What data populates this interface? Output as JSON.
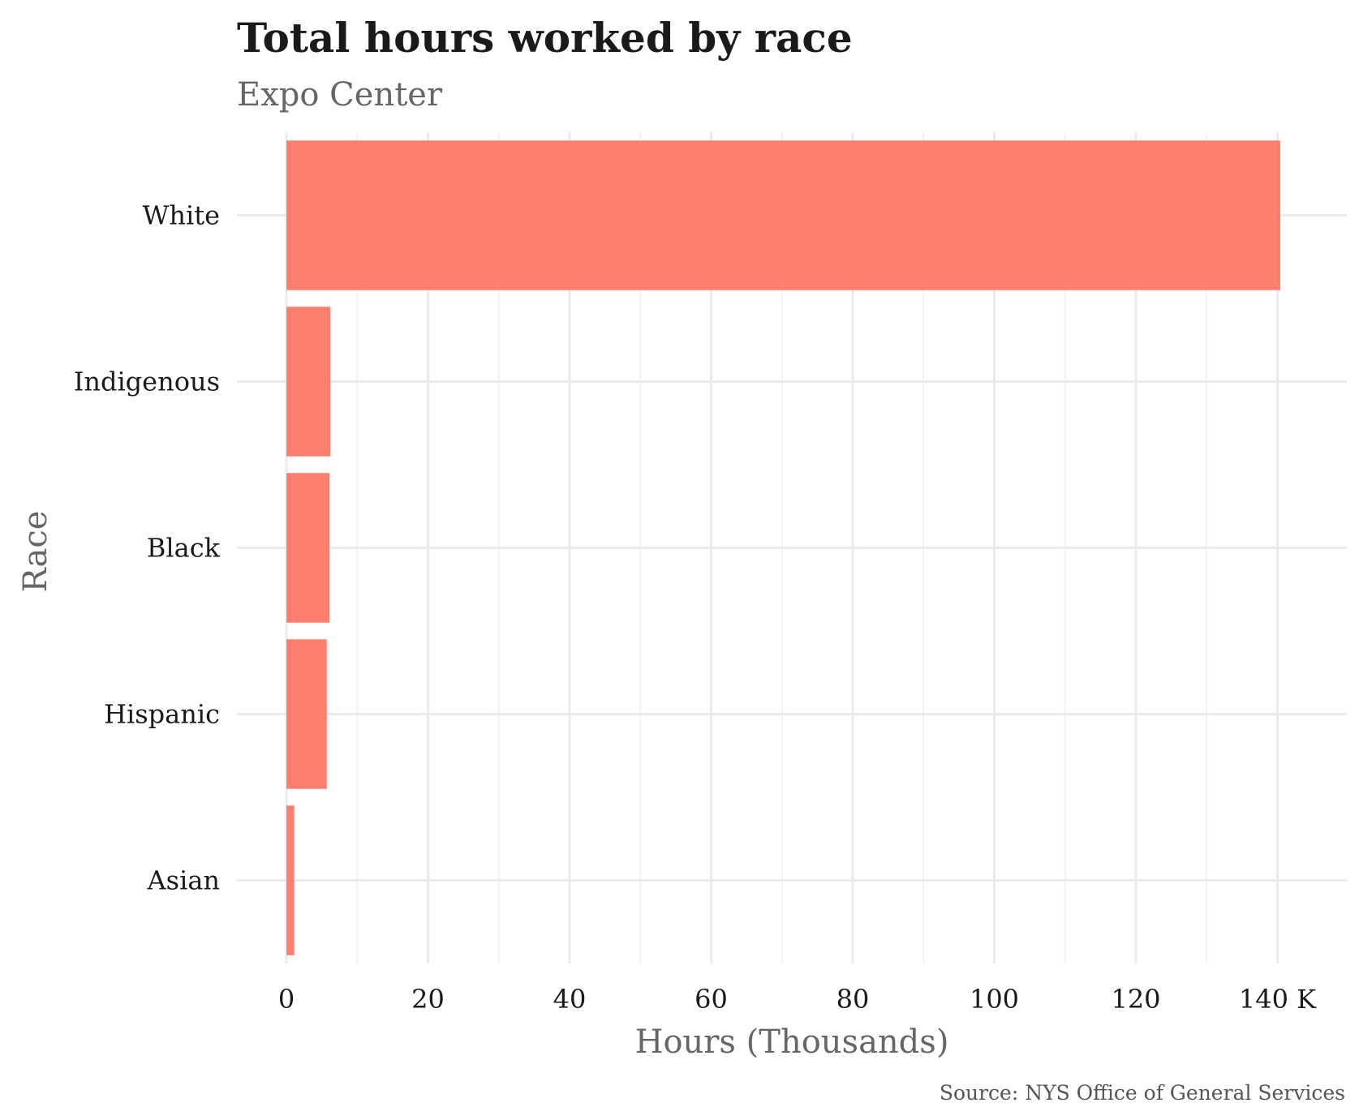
{
  "chart_data": {
    "type": "bar",
    "orientation": "horizontal",
    "title": "Total hours worked by race",
    "subtitle": "Expo Center",
    "xlabel": "Hours (Thousands)",
    "ylabel": "Race",
    "caption": "Source: NYS Office of General Services",
    "categories": [
      "White",
      "Indigenous",
      "Black",
      "Hispanic",
      "Asian"
    ],
    "values": [
      140.4,
      6.2,
      6.1,
      5.7,
      1.1
    ],
    "xlim": [
      0,
      150
    ],
    "x_ticks": [
      0,
      20,
      40,
      60,
      80,
      100,
      120,
      140
    ],
    "x_tick_labels": [
      "0",
      "20",
      "40",
      "60",
      "80",
      "100",
      "120",
      "140 K"
    ],
    "bar_color": "#ff7f6e",
    "grid": true,
    "legend": "none"
  }
}
